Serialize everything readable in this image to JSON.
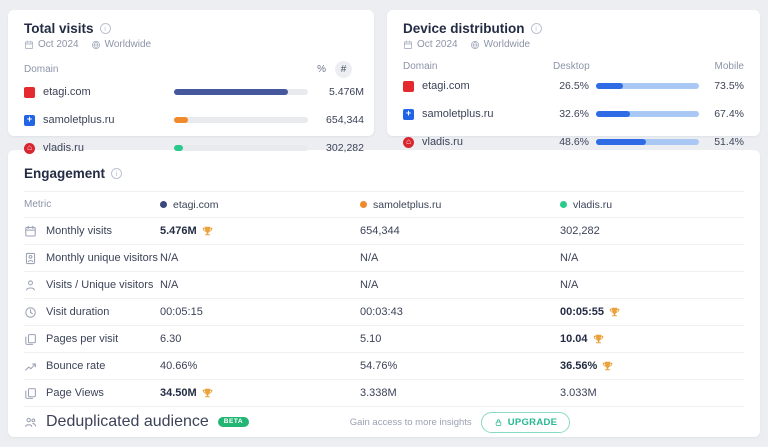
{
  "panels": {
    "total_visits": {
      "title": "Total visits",
      "date": "Oct 2024",
      "region": "Worldwide",
      "domain_header": "Domain",
      "percent_toggle": "%",
      "count_toggle": "#",
      "rows": [
        {
          "domain": "etagi.com",
          "favicon": "etagi",
          "value": "5.476M",
          "bar_pct": 85,
          "bar_color": "#44589B"
        },
        {
          "domain": "samoletplus.ru",
          "favicon": "samoletplus",
          "value": "654,344",
          "bar_pct": 10.5,
          "bar_color": "#F0882C"
        },
        {
          "domain": "vladis.ru",
          "favicon": "vladis",
          "value": "302,282",
          "bar_pct": 7,
          "bar_color": "#2AC98C"
        }
      ]
    },
    "device_distribution": {
      "title": "Device distribution",
      "date": "Oct 2024",
      "region": "Worldwide",
      "domain_header": "Domain",
      "desktop_header": "Desktop",
      "mobile_header": "Mobile",
      "desktop_color": "#2F6BE4",
      "mobile_color": "#A9C9F4",
      "rows": [
        {
          "domain": "etagi.com",
          "favicon": "etagi",
          "desktop": "26.5%",
          "mobile": "73.5%",
          "desktop_pct": 26.5
        },
        {
          "domain": "samoletplus.ru",
          "favicon": "samoletplus",
          "desktop": "32.6%",
          "mobile": "67.4%",
          "desktop_pct": 32.6
        },
        {
          "domain": "vladis.ru",
          "favicon": "vladis",
          "desktop": "48.6%",
          "mobile": "51.4%",
          "desktop_pct": 48.6
        }
      ]
    },
    "engagement": {
      "title": "Engagement",
      "metric_header": "Metric",
      "columns": [
        {
          "label": "etagi.com",
          "dot_color": "#39477B"
        },
        {
          "label": "samoletplus.ru",
          "dot_color": "#F0882C"
        },
        {
          "label": "vladis.ru",
          "dot_color": "#2AC98C"
        }
      ],
      "rows": [
        {
          "metric": "Monthly visits",
          "icon": "calendar-icon",
          "values": [
            "5.476M",
            "654,344",
            "302,282"
          ],
          "winner": 0
        },
        {
          "metric": "Monthly unique visitors",
          "icon": "badge-user-icon",
          "values": [
            "N/A",
            "N/A",
            "N/A"
          ],
          "winner": null
        },
        {
          "metric": "Visits / Unique visitors",
          "icon": "user-icon",
          "values": [
            "N/A",
            "N/A",
            "N/A"
          ],
          "winner": null
        },
        {
          "metric": "Visit duration",
          "icon": "clock-icon",
          "values": [
            "00:05:15",
            "00:03:43",
            "00:05:55"
          ],
          "winner": 2
        },
        {
          "metric": "Pages per visit",
          "icon": "pages-icon",
          "values": [
            "6.30",
            "5.10",
            "10.04"
          ],
          "winner": 2
        },
        {
          "metric": "Bounce rate",
          "icon": "bounce-icon",
          "values": [
            "40.66%",
            "54.76%",
            "36.56%"
          ],
          "winner": 2
        },
        {
          "metric": "Page Views",
          "icon": "pages-icon",
          "values": [
            "34.50M",
            "3.338M",
            "3.033M"
          ],
          "winner": 0
        }
      ],
      "footer": {
        "label": "Deduplicated audience",
        "badge": "BETA",
        "cta_text": "Gain access to more insights",
        "upgrade_label": "UPGRADE"
      }
    }
  },
  "chart_data": [
    {
      "type": "bar",
      "title": "Total visits",
      "categories": [
        "etagi.com",
        "samoletplus.ru",
        "vladis.ru"
      ],
      "values": [
        5476000,
        654344,
        302282
      ],
      "value_labels": [
        "5.476M",
        "654,344",
        "302,282"
      ]
    },
    {
      "type": "bar",
      "title": "Device distribution",
      "categories": [
        "etagi.com",
        "samoletplus.ru",
        "vladis.ru"
      ],
      "series": [
        {
          "name": "Desktop",
          "values": [
            26.5,
            32.6,
            48.6
          ]
        },
        {
          "name": "Mobile",
          "values": [
            73.5,
            67.4,
            51.4
          ]
        }
      ],
      "unit": "%"
    }
  ]
}
